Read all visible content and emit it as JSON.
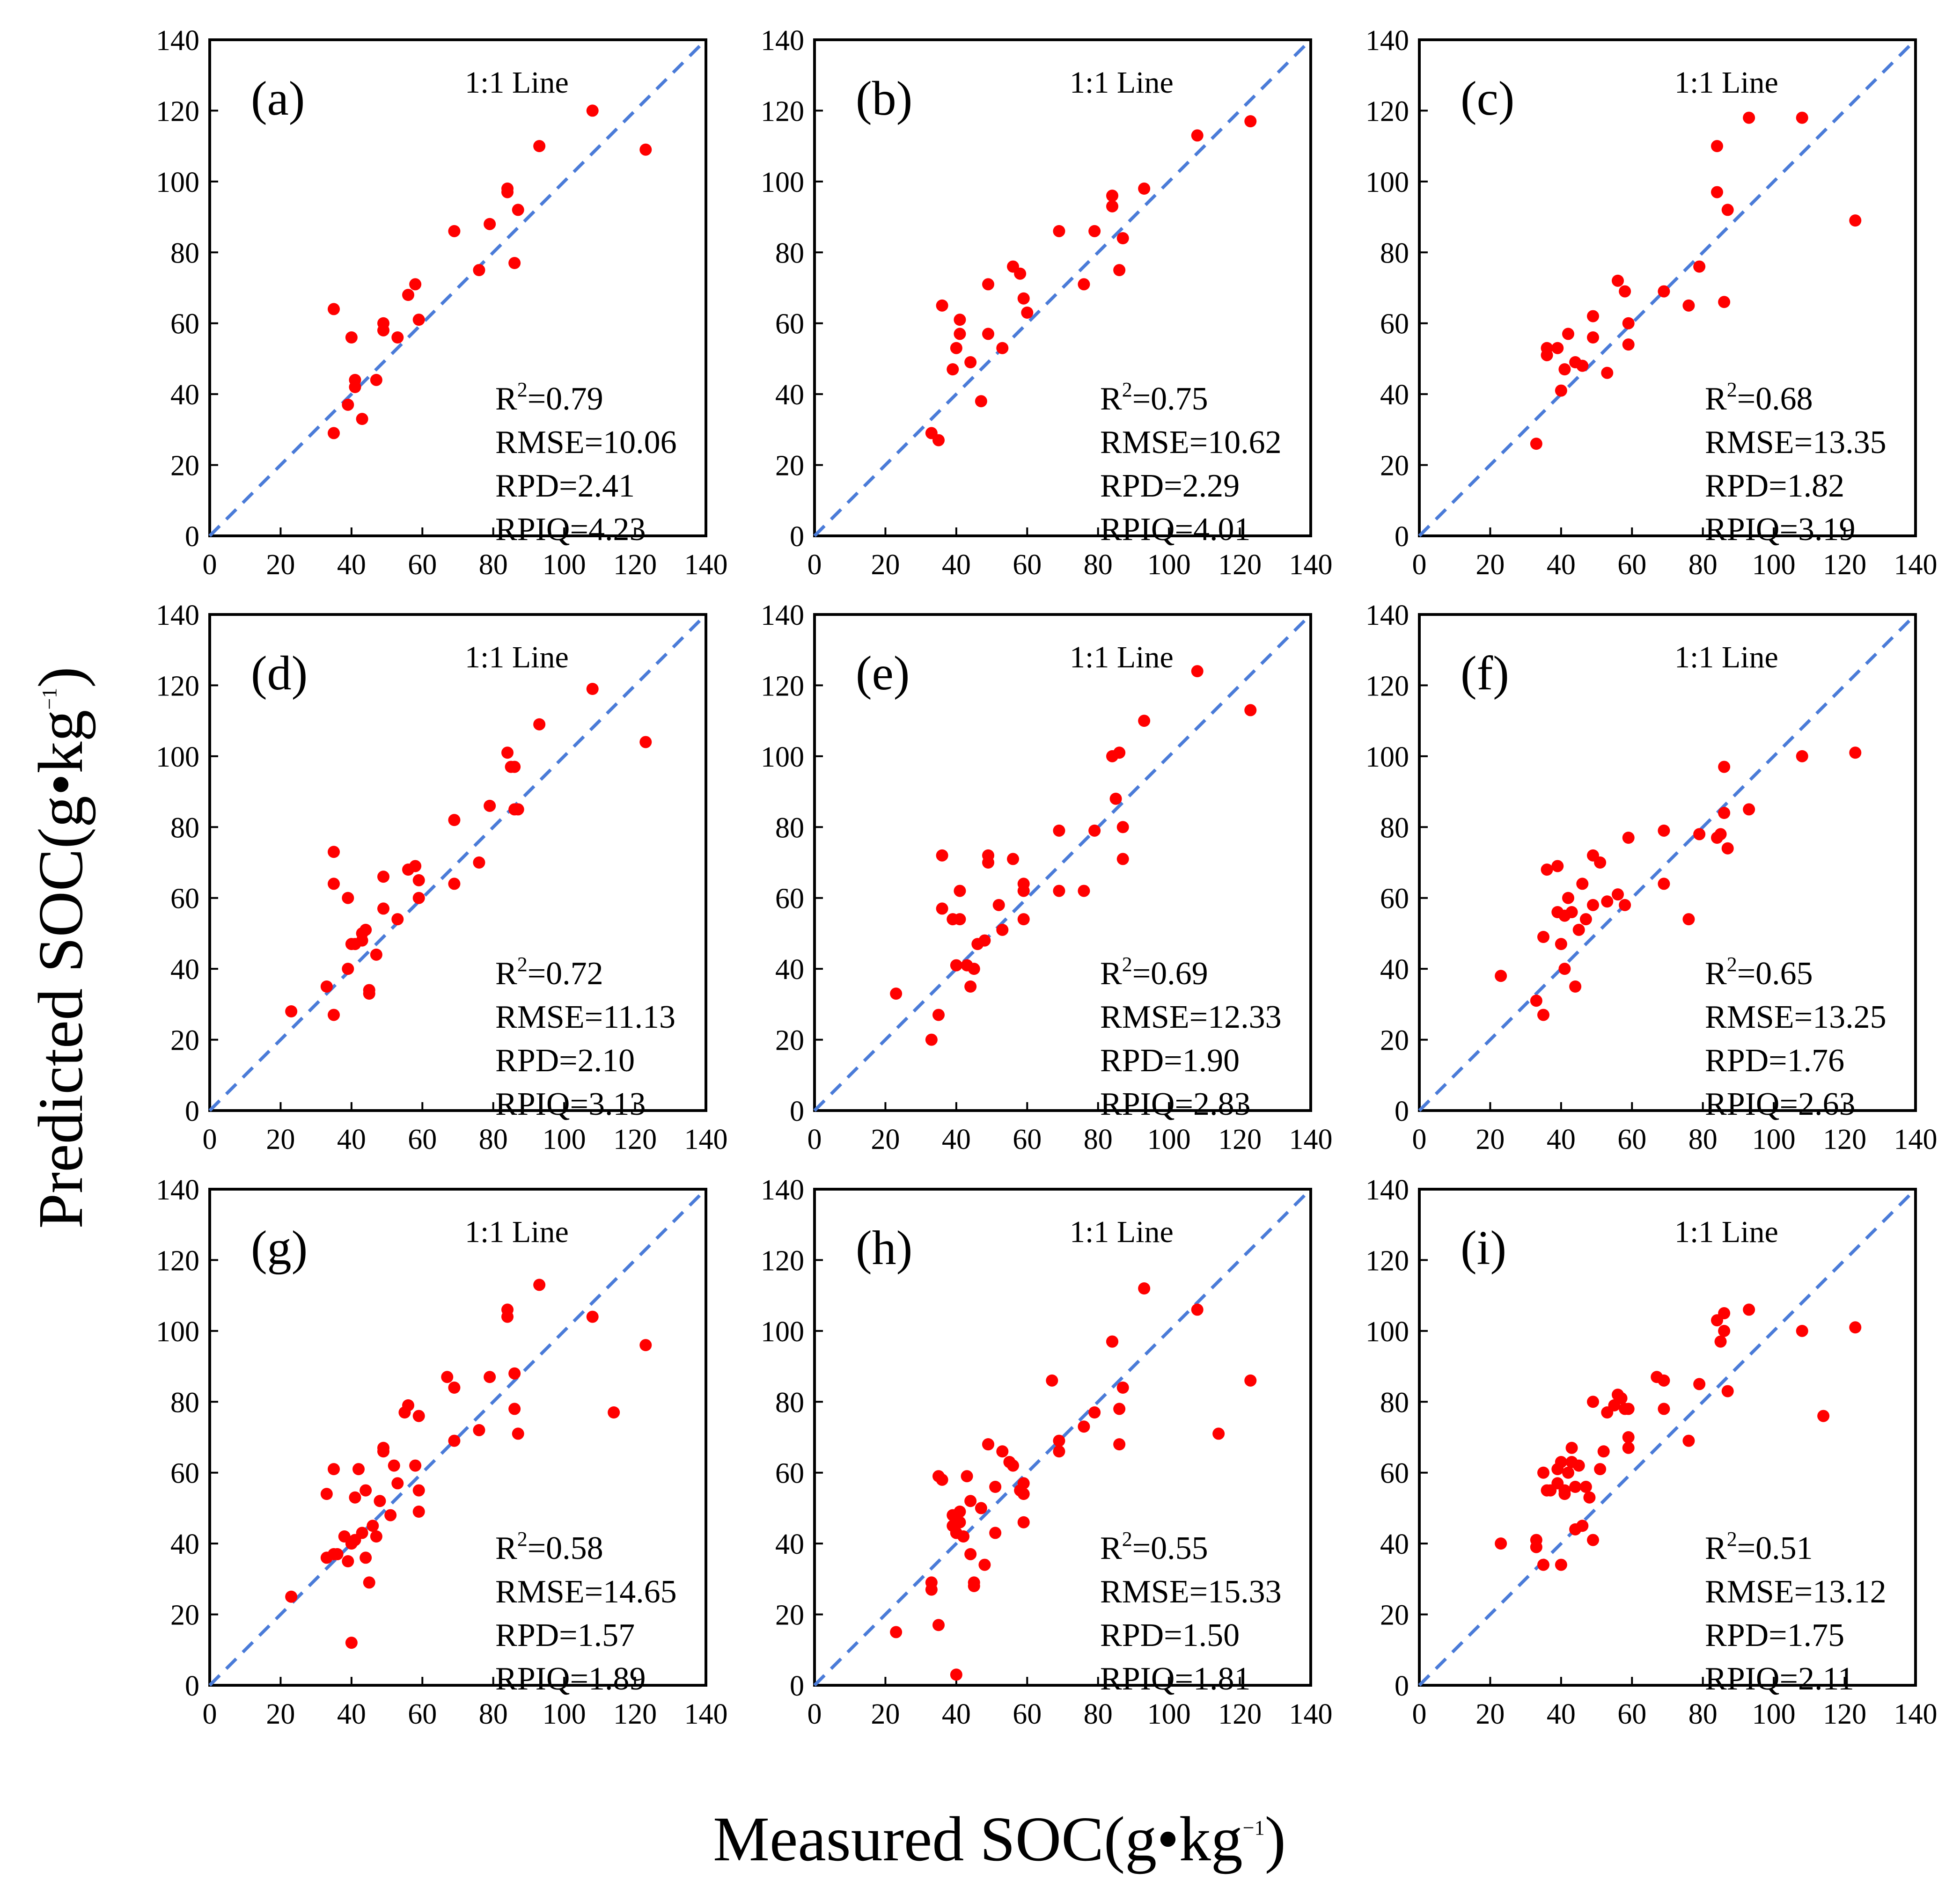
{
  "figure": {
    "ylabel": "Predicted SOC(g•kg",
    "ylabel_sup": "−1",
    "ylabel_tail": ")",
    "xlabel": "Measured SOC(g•kg",
    "xlabel_sup": "−1",
    "xlabel_tail": ")"
  },
  "colors": {
    "points": "#ff0000",
    "line": "#4a7bd8",
    "axis": "#000000"
  },
  "chart_data": [
    {
      "type": "scatter",
      "label": "(a)",
      "line_label": "1:1 Line",
      "xlim": [
        0,
        140
      ],
      "ylim": [
        0,
        140
      ],
      "ticks": [
        0,
        20,
        40,
        60,
        80,
        100,
        120,
        140
      ],
      "stats": {
        "r2_prefix": "R",
        "r2_sup": "2",
        "r2_value": "=0.79",
        "rmse": "RMSE=10.06",
        "rpd": "RPD=2.41",
        "rpiq": "RPIQ=4.23"
      },
      "x": [
        35,
        35,
        39,
        40,
        41,
        41,
        43,
        47,
        49,
        49,
        53,
        56,
        58,
        59,
        69,
        76,
        79,
        84,
        84,
        86,
        87,
        93,
        108,
        123
      ],
      "y": [
        29,
        64,
        37,
        56,
        44,
        42,
        33,
        44,
        60,
        58,
        56,
        68,
        71,
        61,
        86,
        75,
        88,
        98,
        97,
        77,
        92,
        110,
        120,
        109
      ]
    },
    {
      "type": "scatter",
      "label": "(b)",
      "line_label": "1:1 Line",
      "xlim": [
        0,
        140
      ],
      "ylim": [
        0,
        140
      ],
      "ticks": [
        0,
        20,
        40,
        60,
        80,
        100,
        120,
        140
      ],
      "stats": {
        "r2_prefix": "R",
        "r2_sup": "2",
        "r2_value": "=0.75",
        "rmse": "RMSE=10.62",
        "rpd": "RPD=2.29",
        "rpiq": "RPIQ=4.01"
      },
      "x": [
        33,
        35,
        36,
        39,
        40,
        41,
        41,
        44,
        47,
        49,
        49,
        53,
        56,
        58,
        59,
        60,
        69,
        76,
        79,
        84,
        84,
        86,
        87,
        93,
        108,
        123
      ],
      "y": [
        29,
        27,
        65,
        47,
        53,
        61,
        57,
        49,
        38,
        57,
        71,
        53,
        76,
        74,
        67,
        63,
        86,
        71,
        86,
        96,
        93,
        75,
        84,
        98,
        113,
        117
      ]
    },
    {
      "type": "scatter",
      "label": "(c)",
      "line_label": "1:1 Line",
      "xlim": [
        0,
        140
      ],
      "ylim": [
        0,
        140
      ],
      "ticks": [
        0,
        20,
        40,
        60,
        80,
        100,
        120,
        140
      ],
      "stats": {
        "r2_prefix": "R",
        "r2_sup": "2",
        "r2_value": "=0.68",
        "rmse": "RMSE=13.35",
        "rpd": "RPD=1.82",
        "rpiq": "RPIQ=3.19"
      },
      "x": [
        33,
        36,
        36,
        39,
        40,
        41,
        42,
        44,
        46,
        49,
        49,
        53,
        56,
        58,
        59,
        59,
        69,
        76,
        79,
        84,
        84,
        86,
        87,
        93,
        108,
        123
      ],
      "y": [
        26,
        53,
        51,
        53,
        41,
        47,
        57,
        49,
        48,
        62,
        56,
        46,
        72,
        69,
        60,
        54,
        69,
        65,
        76,
        110,
        97,
        66,
        92,
        118,
        118,
        89
      ]
    },
    {
      "type": "scatter",
      "label": "(d)",
      "line_label": "1:1 Line",
      "xlim": [
        0,
        140
      ],
      "ylim": [
        0,
        140
      ],
      "ticks": [
        0,
        20,
        40,
        60,
        80,
        100,
        120,
        140
      ],
      "stats": {
        "r2_prefix": "R",
        "r2_sup": "2",
        "r2_value": "=0.72",
        "rmse": "RMSE=11.13",
        "rpd": "RPD=2.10",
        "rpiq": "RPIQ=3.13"
      },
      "x": [
        23,
        33,
        35,
        35,
        35,
        39,
        39,
        40,
        41,
        43,
        43,
        44,
        45,
        45,
        47,
        49,
        49,
        53,
        56,
        58,
        59,
        59,
        69,
        69,
        76,
        79,
        84,
        85,
        86,
        86,
        87,
        93,
        108,
        123
      ],
      "y": [
        28,
        35,
        27,
        73,
        64,
        60,
        40,
        47,
        47,
        50,
        48,
        51,
        34,
        33,
        44,
        66,
        57,
        54,
        68,
        69,
        65,
        60,
        82,
        64,
        70,
        86,
        101,
        97,
        97,
        85,
        85,
        109,
        119,
        104
      ]
    },
    {
      "type": "scatter",
      "label": "(e)",
      "line_label": "1:1 Line",
      "xlim": [
        0,
        140
      ],
      "ylim": [
        0,
        140
      ],
      "ticks": [
        0,
        20,
        40,
        60,
        80,
        100,
        120,
        140
      ],
      "stats": {
        "r2_prefix": "R",
        "r2_sup": "2",
        "r2_value": "=0.69",
        "rmse": "RMSE=12.33",
        "rpd": "RPD=1.90",
        "rpiq": "RPIQ=2.83"
      },
      "x": [
        23,
        33,
        35,
        36,
        36,
        39,
        40,
        41,
        41,
        43,
        44,
        45,
        46,
        48,
        49,
        49,
        52,
        53,
        56,
        59,
        59,
        59,
        69,
        69,
        76,
        79,
        84,
        85,
        86,
        87,
        87,
        93,
        108,
        123
      ],
      "y": [
        33,
        20,
        27,
        72,
        57,
        54,
        41,
        62,
        54,
        41,
        35,
        40,
        47,
        48,
        70,
        72,
        58,
        51,
        71,
        64,
        62,
        54,
        79,
        62,
        62,
        79,
        100,
        88,
        101,
        80,
        71,
        110,
        124,
        113
      ]
    },
    {
      "type": "scatter",
      "label": "(f)",
      "line_label": "1:1 Line",
      "xlim": [
        0,
        140
      ],
      "ylim": [
        0,
        140
      ],
      "ticks": [
        0,
        20,
        40,
        60,
        80,
        100,
        120,
        140
      ],
      "stats": {
        "r2_prefix": "R",
        "r2_sup": "2",
        "r2_value": "=0.65",
        "rmse": "RMSE=13.25",
        "rpd": "RPD=1.76",
        "rpiq": "RPIQ=2.63"
      },
      "x": [
        23,
        33,
        35,
        35,
        36,
        39,
        39,
        40,
        41,
        41,
        42,
        43,
        44,
        45,
        46,
        47,
        49,
        49,
        51,
        53,
        56,
        58,
        59,
        69,
        69,
        76,
        79,
        84,
        85,
        86,
        86,
        87,
        93,
        108,
        123
      ],
      "y": [
        38,
        31,
        27,
        49,
        68,
        69,
        56,
        47,
        55,
        40,
        60,
        56,
        35,
        51,
        64,
        54,
        58,
        72,
        70,
        59,
        61,
        58,
        77,
        79,
        64,
        54,
        78,
        77,
        78,
        97,
        84,
        74,
        85,
        100,
        101
      ]
    },
    {
      "type": "scatter",
      "label": "(g)",
      "line_label": "1:1 Line",
      "xlim": [
        0,
        140
      ],
      "ylim": [
        0,
        140
      ],
      "ticks": [
        0,
        20,
        40,
        60,
        80,
        100,
        120,
        140
      ],
      "stats": {
        "r2_prefix": "R",
        "r2_sup": "2",
        "r2_value": "=0.58",
        "rmse": "RMSE=14.65",
        "rpd": "RPD=1.57",
        "rpiq": "RPIQ=1.89"
      },
      "x": [
        23,
        33,
        33,
        35,
        35,
        36,
        38,
        39,
        40,
        40,
        41,
        41,
        42,
        43,
        44,
        44,
        45,
        46,
        47,
        48,
        49,
        49,
        51,
        52,
        53,
        55,
        56,
        58,
        59,
        59,
        59,
        67,
        69,
        69,
        76,
        79,
        84,
        84,
        86,
        86,
        87,
        93,
        108,
        114,
        123
      ],
      "y": [
        25,
        36,
        54,
        37,
        61,
        37,
        42,
        35,
        12,
        40,
        41,
        53,
        61,
        43,
        55,
        36,
        29,
        45,
        42,
        52,
        66,
        67,
        48,
        62,
        57,
        77,
        79,
        62,
        55,
        49,
        76,
        87,
        84,
        69,
        72,
        87,
        106,
        104,
        88,
        78,
        71,
        113,
        104,
        77,
        96
      ]
    },
    {
      "type": "scatter",
      "label": "(h)",
      "line_label": "1:1 Line",
      "xlim": [
        0,
        140
      ],
      "ylim": [
        0,
        140
      ],
      "ticks": [
        0,
        20,
        40,
        60,
        80,
        100,
        120,
        140
      ],
      "stats": {
        "r2_prefix": "R",
        "r2_sup": "2",
        "r2_value": "=0.55",
        "rmse": "RMSE=15.33",
        "rpd": "RPD=1.50",
        "rpiq": "RPIQ=1.81"
      },
      "x": [
        23,
        33,
        33,
        35,
        35,
        36,
        39,
        39,
        40,
        40,
        40,
        41,
        41,
        42,
        43,
        44,
        44,
        45,
        45,
        47,
        48,
        49,
        49,
        51,
        51,
        53,
        55,
        56,
        58,
        59,
        59,
        59,
        67,
        69,
        69,
        76,
        79,
        84,
        84,
        86,
        86,
        87,
        93,
        108,
        114,
        123
      ],
      "y": [
        15,
        29,
        27,
        17,
        59,
        58,
        48,
        45,
        3,
        43,
        43,
        49,
        46,
        42,
        59,
        37,
        52,
        28,
        29,
        50,
        34,
        68,
        68,
        43,
        56,
        66,
        63,
        62,
        55,
        57,
        54,
        46,
        86,
        69,
        66,
        73,
        77,
        97,
        97,
        78,
        68,
        84,
        112,
        106,
        71,
        86
      ]
    },
    {
      "type": "scatter",
      "label": "(i)",
      "line_label": "1:1 Line",
      "xlim": [
        0,
        140
      ],
      "ylim": [
        0,
        140
      ],
      "ticks": [
        0,
        20,
        40,
        60,
        80,
        100,
        120,
        140
      ],
      "stats": {
        "r2_prefix": "R",
        "r2_sup": "2",
        "r2_value": "=0.51",
        "rmse": "RMSE=13.12",
        "rpd": "RPD=1.75",
        "rpiq": "RPIQ=2.11"
      },
      "x": [
        23,
        33,
        33,
        35,
        35,
        36,
        37,
        39,
        39,
        40,
        40,
        41,
        41,
        42,
        43,
        43,
        44,
        44,
        45,
        46,
        47,
        48,
        49,
        49,
        51,
        52,
        53,
        55,
        56,
        57,
        58,
        59,
        59,
        59,
        67,
        69,
        69,
        76,
        79,
        84,
        85,
        86,
        86,
        87,
        93,
        108,
        114,
        123
      ],
      "y": [
        40,
        39,
        41,
        34,
        60,
        55,
        55,
        61,
        57,
        34,
        63,
        54,
        55,
        60,
        67,
        63,
        44,
        56,
        62,
        45,
        56,
        53,
        41,
        80,
        61,
        66,
        77,
        79,
        82,
        81,
        78,
        70,
        78,
        67,
        87,
        86,
        78,
        69,
        85,
        103,
        97,
        105,
        100,
        83,
        106,
        100,
        76,
        101
      ]
    }
  ]
}
